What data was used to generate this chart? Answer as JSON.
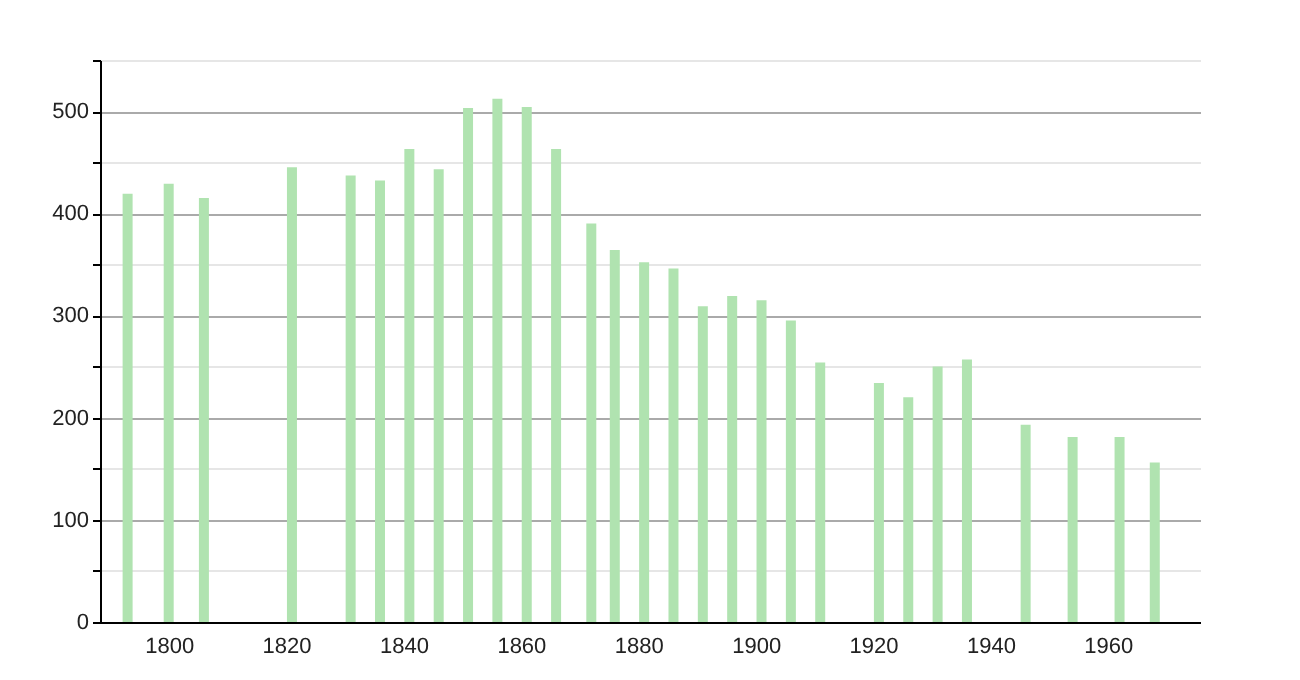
{
  "chart_data": {
    "type": "bar",
    "x": [
      1793,
      1800,
      1806,
      1821,
      1831,
      1836,
      1841,
      1846,
      1851,
      1856,
      1861,
      1866,
      1872,
      1876,
      1881,
      1886,
      1891,
      1896,
      1901,
      1906,
      1911,
      1921,
      1926,
      1931,
      1936,
      1946,
      1954,
      1962,
      1968
    ],
    "values": [
      419,
      429,
      415,
      445,
      437,
      432,
      463,
      443,
      503,
      512,
      504,
      463,
      390,
      364,
      352,
      346,
      309,
      319,
      315,
      295,
      254,
      234,
      220,
      250,
      257,
      193,
      181,
      181,
      156
    ],
    "color": "#b0e3b0",
    "xlim": [
      1790,
      1974
    ],
    "xticks": [
      1800,
      1820,
      1840,
      1860,
      1880,
      1900,
      1920,
      1940,
      1960
    ],
    "ylim": [
      0,
      550
    ],
    "yticks": [
      0,
      {
        "value": 50,
        "label": null
      },
      100,
      {
        "value": 150,
        "label": null
      },
      200,
      {
        "value": 250,
        "label": null
      },
      300,
      {
        "value": 350,
        "label": null
      },
      400,
      {
        "value": 450,
        "label": null
      },
      500,
      {
        "value": 550,
        "label": null
      }
    ],
    "grid": "y"
  }
}
